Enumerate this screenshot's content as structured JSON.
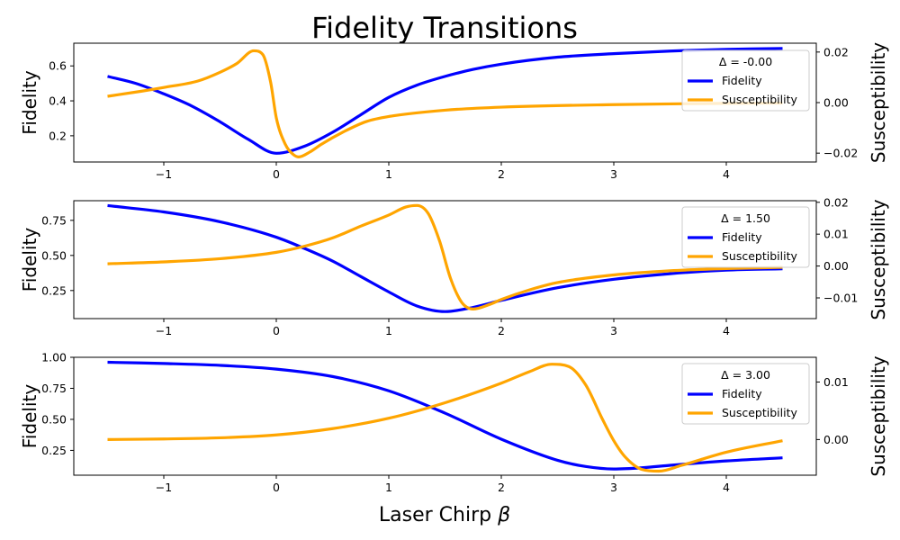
{
  "figure": {
    "title": "Fidelity Transitions",
    "xlabel_main": "Laser Chirp ",
    "xlabel_symbol": "β"
  },
  "colors": {
    "fidelity": "#0000ff",
    "susceptibility": "#ffa500"
  },
  "chart_data": [
    {
      "type": "line",
      "legend_title": "Δ = -0.00",
      "ylabel_left": "Fidelity",
      "ylabel_right": "Susceptibility",
      "xlim": [
        -1.8,
        4.8
      ],
      "ylim_left": [
        0.05,
        0.73
      ],
      "ylim_right": [
        -0.0235,
        0.0235
      ],
      "xticks": [
        -1,
        0,
        1,
        2,
        3,
        4
      ],
      "xtick_labels": [
        "−1",
        "0",
        "1",
        "2",
        "3",
        "4"
      ],
      "yticks_left": [
        0.2,
        0.4,
        0.6
      ],
      "ytick_labels_left": [
        "0.2",
        "0.4",
        "0.6"
      ],
      "yticks_right": [
        -0.02,
        0.0,
        0.02
      ],
      "ytick_labels_right": [
        "−0.02",
        "0.00",
        "0.02"
      ],
      "legend_position": "upper right",
      "series": [
        {
          "name": "Fidelity",
          "axis": "left",
          "x": [
            -1.5,
            -1.25,
            -1.0,
            -0.75,
            -0.5,
            -0.25,
            0.0,
            0.25,
            0.5,
            0.75,
            1.0,
            1.25,
            1.5,
            1.75,
            2.0,
            2.5,
            3.0,
            3.5,
            4.0,
            4.5
          ],
          "y": [
            0.54,
            0.5,
            0.44,
            0.37,
            0.28,
            0.18,
            0.1,
            0.14,
            0.22,
            0.32,
            0.42,
            0.49,
            0.54,
            0.58,
            0.61,
            0.65,
            0.67,
            0.685,
            0.695,
            0.7
          ]
        },
        {
          "name": "Susceptibility",
          "axis": "right",
          "x": [
            -1.5,
            -1.2,
            -1.0,
            -0.7,
            -0.5,
            -0.35,
            -0.2,
            -0.12,
            -0.05,
            0.0,
            0.08,
            0.15,
            0.2,
            0.3,
            0.4,
            0.6,
            0.8,
            1.0,
            1.5,
            2.0,
            3.0,
            4.0,
            4.5
          ],
          "y": [
            0.0025,
            0.0045,
            0.006,
            0.0085,
            0.012,
            0.0155,
            0.0205,
            0.019,
            0.008,
            -0.006,
            -0.0165,
            -0.0205,
            -0.0215,
            -0.0195,
            -0.0165,
            -0.0115,
            -0.0075,
            -0.0055,
            -0.003,
            -0.0018,
            -0.0008,
            -0.0003,
            -0.0002
          ]
        }
      ]
    },
    {
      "type": "line",
      "legend_title": "Δ = 1.50",
      "ylabel_left": "Fidelity",
      "ylabel_right": "Susceptibility",
      "xlim": [
        -1.8,
        4.8
      ],
      "ylim_left": [
        0.05,
        0.89
      ],
      "ylim_right": [
        -0.0165,
        0.0205
      ],
      "xticks": [
        -1,
        0,
        1,
        2,
        3,
        4
      ],
      "xtick_labels": [
        "−1",
        "0",
        "1",
        "2",
        "3",
        "4"
      ],
      "yticks_left": [
        0.25,
        0.5,
        0.75
      ],
      "ytick_labels_left": [
        "0.25",
        "0.50",
        "0.75"
      ],
      "yticks_right": [
        -0.01,
        0.0,
        0.01,
        0.02
      ],
      "ytick_labels_right": [
        "−0.01",
        "0.00",
        "0.01",
        "0.02"
      ],
      "legend_position": "upper right",
      "series": [
        {
          "name": "Fidelity",
          "axis": "left",
          "x": [
            -1.5,
            -1.0,
            -0.5,
            0.0,
            0.25,
            0.5,
            0.75,
            1.0,
            1.25,
            1.5,
            1.75,
            2.0,
            2.5,
            3.0,
            3.5,
            4.0,
            4.5
          ],
          "y": [
            0.855,
            0.81,
            0.74,
            0.63,
            0.55,
            0.46,
            0.35,
            0.24,
            0.14,
            0.1,
            0.13,
            0.18,
            0.27,
            0.33,
            0.37,
            0.395,
            0.405
          ],
          "note": ""
        },
        {
          "name": "Susceptibility",
          "axis": "right",
          "x": [
            -1.5,
            -1.0,
            -0.5,
            0.0,
            0.25,
            0.5,
            0.75,
            1.0,
            1.15,
            1.25,
            1.35,
            1.45,
            1.55,
            1.65,
            1.75,
            1.9,
            2.0,
            2.25,
            2.5,
            3.0,
            3.5,
            4.0,
            4.5
          ],
          "y": [
            0.0007,
            0.0013,
            0.0023,
            0.0043,
            0.0062,
            0.0088,
            0.0125,
            0.016,
            0.0185,
            0.019,
            0.0165,
            0.008,
            -0.004,
            -0.0115,
            -0.0135,
            -0.012,
            -0.0105,
            -0.0075,
            -0.0052,
            -0.0028,
            -0.0015,
            -0.0008,
            -0.0004
          ]
        }
      ]
    },
    {
      "type": "line",
      "legend_title": "Δ = 3.00",
      "ylabel_left": "Fidelity",
      "ylabel_right": "Susceptibility",
      "xlim": [
        -1.8,
        4.8
      ],
      "ylim_left": [
        0.05,
        1.0
      ],
      "ylim_right": [
        -0.0062,
        0.0143
      ],
      "xticks": [
        -1,
        0,
        1,
        2,
        3,
        4
      ],
      "xtick_labels": [
        "−1",
        "0",
        "1",
        "2",
        "3",
        "4"
      ],
      "yticks_left": [
        0.25,
        0.5,
        0.75,
        1.0
      ],
      "ytick_labels_left": [
        "0.25",
        "0.50",
        "0.75",
        "1.00"
      ],
      "yticks_right": [
        0.0,
        0.01
      ],
      "ytick_labels_right": [
        "0.00",
        "0.01"
      ],
      "legend_position": "upper right",
      "series": [
        {
          "name": "Fidelity",
          "axis": "left",
          "x": [
            -1.5,
            -1.0,
            -0.5,
            0.0,
            0.5,
            1.0,
            1.5,
            2.0,
            2.5,
            2.75,
            3.0,
            3.25,
            3.5,
            4.0,
            4.5
          ],
          "y": [
            0.96,
            0.95,
            0.935,
            0.905,
            0.845,
            0.73,
            0.55,
            0.34,
            0.17,
            0.12,
            0.1,
            0.11,
            0.13,
            0.165,
            0.19
          ]
        },
        {
          "name": "Susceptibility",
          "axis": "right",
          "x": [
            -1.5,
            -1.0,
            -0.5,
            0.0,
            0.5,
            1.0,
            1.5,
            2.0,
            2.25,
            2.45,
            2.6,
            2.75,
            2.9,
            3.0,
            3.1,
            3.25,
            3.4,
            3.6,
            4.0,
            4.5
          ],
          "y": [
            0.0,
            0.0001,
            0.0003,
            0.0008,
            0.0019,
            0.0037,
            0.0064,
            0.0098,
            0.0118,
            0.0131,
            0.0127,
            0.0095,
            0.0035,
            -0.0002,
            -0.003,
            -0.0052,
            -0.0055,
            -0.0045,
            -0.0022,
            -0.0002
          ]
        }
      ]
    }
  ]
}
